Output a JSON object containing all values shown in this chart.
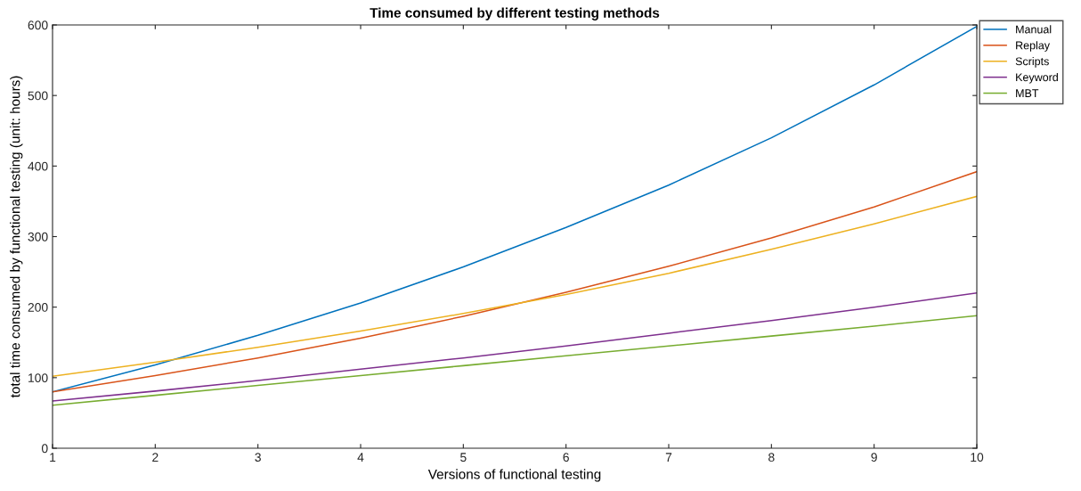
{
  "chart_data": {
    "type": "line",
    "title": "Time consumed by different testing methods",
    "xlabel": "Versions of functional testing",
    "ylabel": "total time consumed by functional testing (unit: hours)",
    "x": [
      1,
      2,
      3,
      4,
      5,
      6,
      7,
      8,
      9,
      10
    ],
    "series": [
      {
        "name": "Manual",
        "color": "#0072bd",
        "values": [
          80,
          118,
          160,
          206,
          257,
          313,
          373,
          440,
          515,
          598
        ]
      },
      {
        "name": "Replay",
        "color": "#d95319",
        "values": [
          80,
          103,
          128,
          156,
          187,
          221,
          258,
          298,
          342,
          392
        ]
      },
      {
        "name": "Scripts",
        "color": "#edb120",
        "values": [
          102,
          122,
          143,
          166,
          191,
          218,
          248,
          282,
          318,
          357
        ]
      },
      {
        "name": "Keyword",
        "color": "#7e2f8e",
        "values": [
          67,
          81,
          96,
          112,
          128,
          145,
          163,
          181,
          200,
          220
        ]
      },
      {
        "name": "MBT",
        "color": "#77ac30",
        "values": [
          61,
          75,
          89,
          103,
          117,
          131,
          145,
          159,
          173,
          188
        ]
      }
    ],
    "xlim": [
      1,
      10
    ],
    "xticks": [
      1,
      2,
      3,
      4,
      5,
      6,
      7,
      8,
      9,
      10
    ],
    "ylim": [
      0,
      600
    ],
    "yticks": [
      0,
      100,
      200,
      300,
      400,
      500,
      600
    ],
    "grid": false,
    "legend": "top right",
    "marker": "none",
    "line_style": "solid"
  }
}
